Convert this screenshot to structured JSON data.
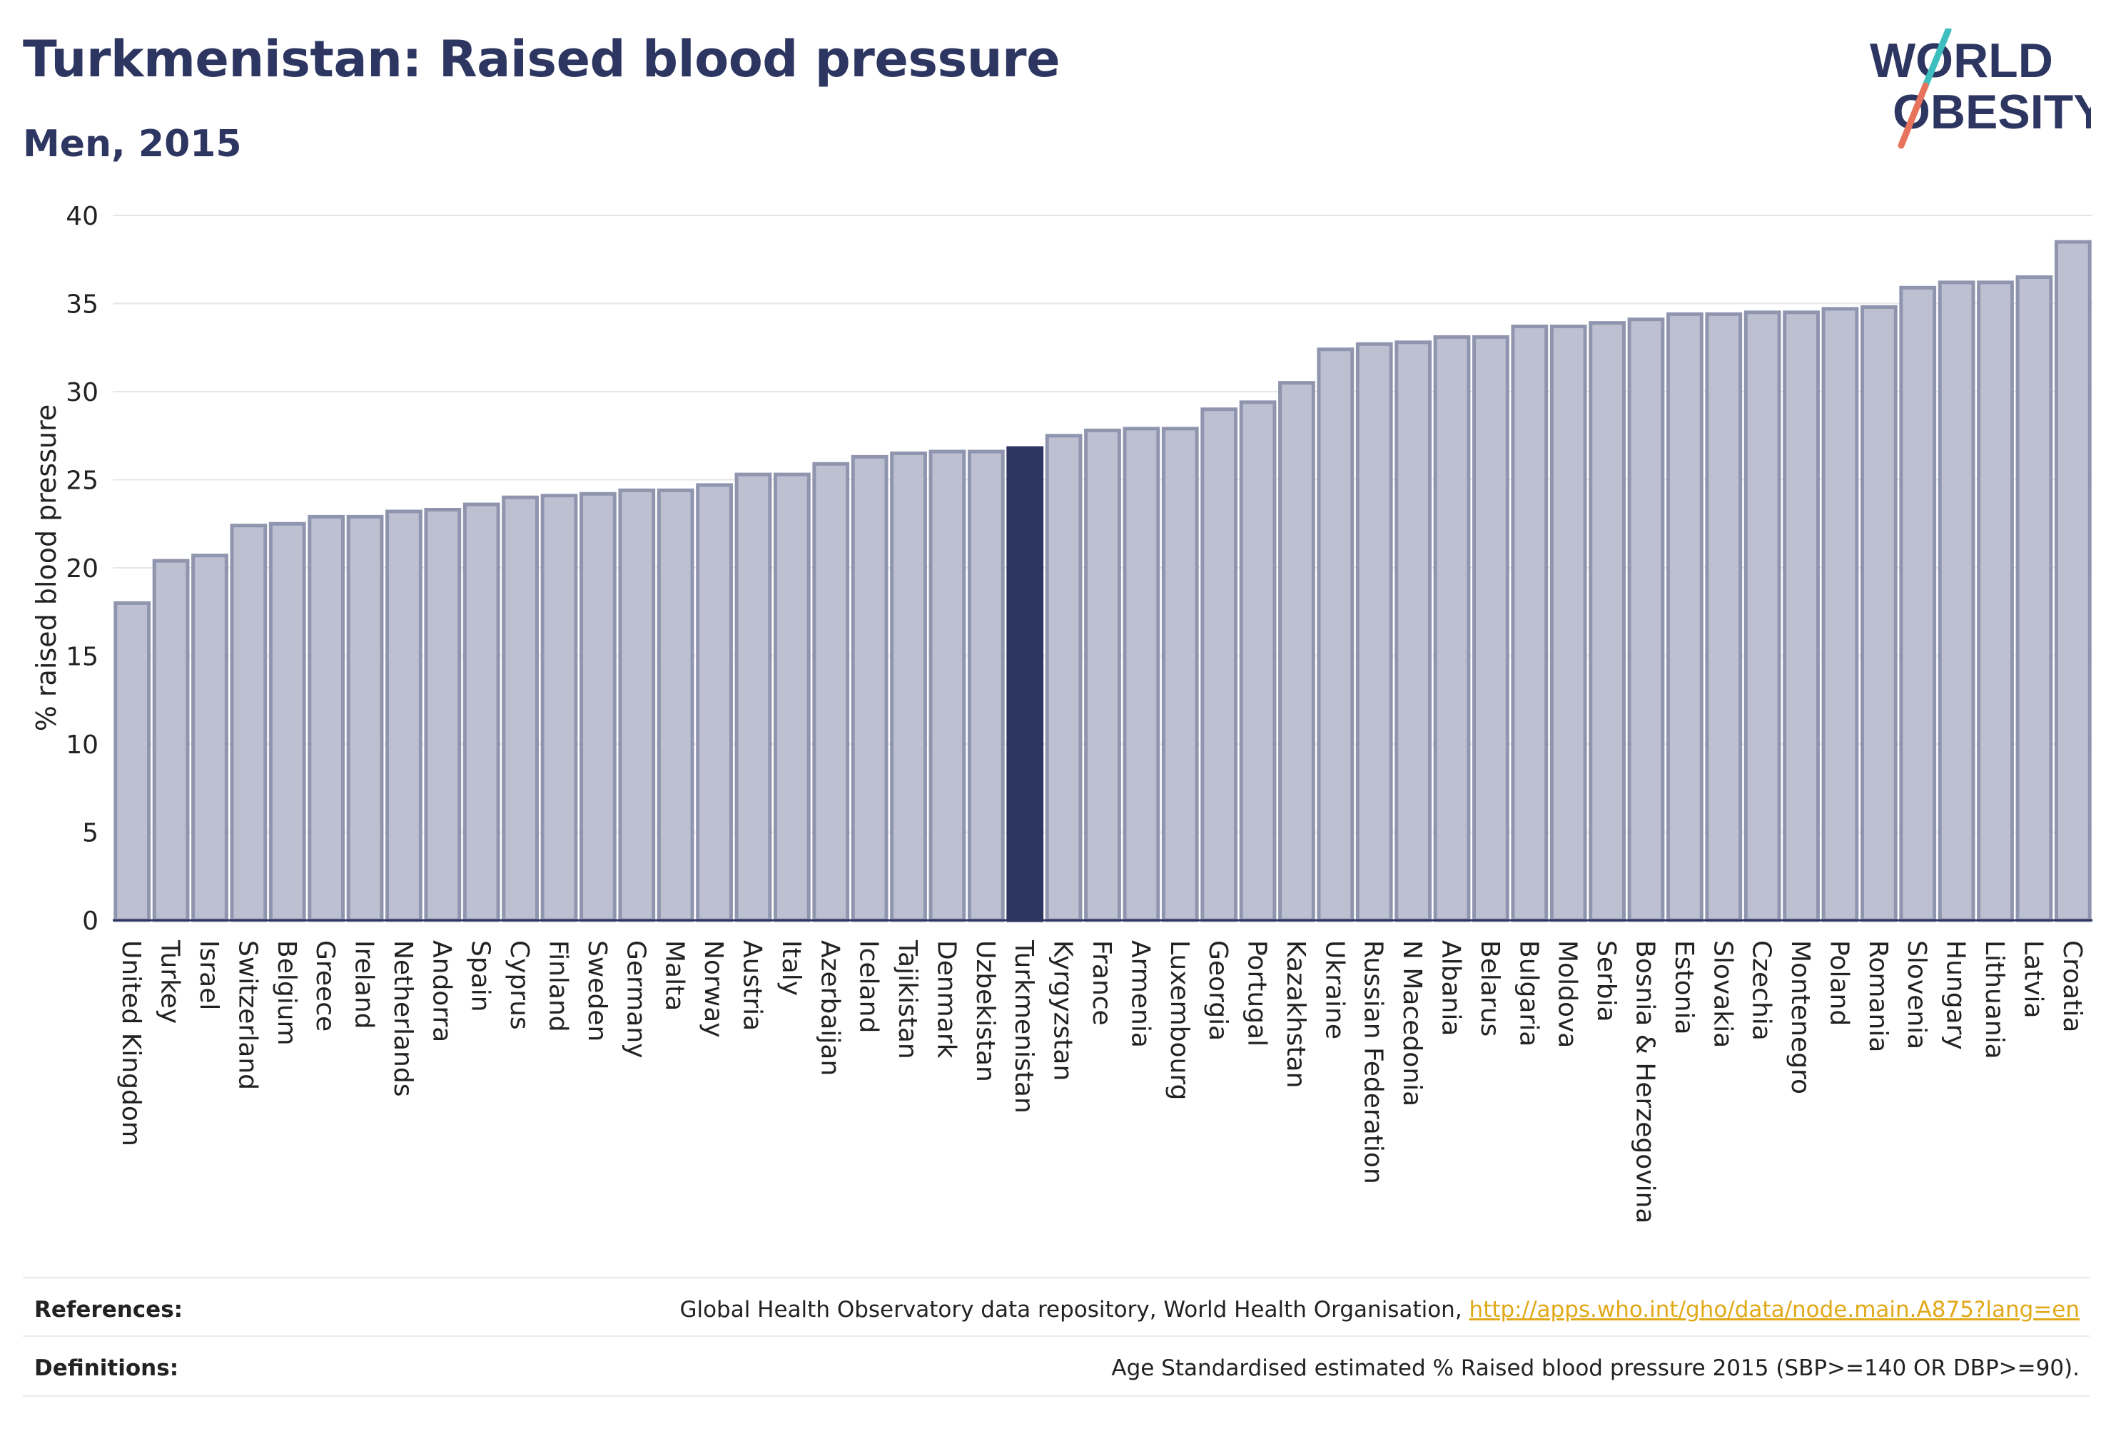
{
  "header": {
    "title": "Turkmenistan: Raised blood pressure",
    "subtitle": "Men, 2015"
  },
  "logo": {
    "line1": "WORLD",
    "line2": "OBESITY"
  },
  "colors": {
    "highlight": "#2d3561",
    "bar_fill": "#bcc0d0",
    "bar_stroke": "#8f95ae",
    "logo_text": "#2d3561",
    "logo_slash_top": "#3dbfbf",
    "logo_slash_bottom": "#e8735c",
    "link": "#e1a918"
  },
  "chart_data": {
    "type": "bar",
    "ylabel": "% raised blood pressure",
    "ylim": [
      0,
      40
    ],
    "yticks": [
      0,
      5,
      10,
      15,
      20,
      25,
      30,
      35,
      40
    ],
    "grid": true,
    "highlight_category": "Turkmenistan",
    "categories": [
      "United Kingdom",
      "Turkey",
      "Israel",
      "Switzerland",
      "Belgium",
      "Greece",
      "Ireland",
      "Netherlands",
      "Andorra",
      "Spain",
      "Cyprus",
      "Finland",
      "Sweden",
      "Germany",
      "Malta",
      "Norway",
      "Austria",
      "Italy",
      "Azerbaijan",
      "Iceland",
      "Tajikistan",
      "Denmark",
      "Uzbekistan",
      "Turkmenistan",
      "Kyrgyzstan",
      "France",
      "Armenia",
      "Luxembourg",
      "Georgia",
      "Portugal",
      "Kazakhstan",
      "Ukraine",
      "Russian Federation",
      "N Macedonia",
      "Albania",
      "Belarus",
      "Bulgaria",
      "Moldova",
      "Serbia",
      "Bosnia & Herzegovina",
      "Estonia",
      "Slovakia",
      "Czechia",
      "Montenegro",
      "Poland",
      "Romania",
      "Slovenia",
      "Hungary",
      "Lithuania",
      "Latvia",
      "Croatia"
    ],
    "values": [
      18.0,
      20.4,
      20.7,
      22.4,
      22.5,
      22.9,
      22.9,
      23.2,
      23.3,
      23.6,
      24.0,
      24.1,
      24.2,
      24.4,
      24.4,
      24.7,
      25.3,
      25.3,
      25.9,
      26.3,
      26.5,
      26.6,
      26.6,
      26.8,
      27.5,
      27.8,
      27.9,
      27.9,
      29.0,
      29.4,
      30.5,
      32.4,
      32.7,
      32.8,
      33.1,
      33.1,
      33.7,
      33.7,
      33.9,
      34.1,
      34.4,
      34.4,
      34.5,
      34.5,
      34.7,
      34.8,
      35.9,
      36.2,
      36.2,
      36.5,
      38.5
    ]
  },
  "footer": {
    "references_label": "References:",
    "references_text": "Global Health Observatory data repository, World Health Organisation, ",
    "references_link": "http://apps.who.int/gho/data/node.main.A875?lang=en",
    "definitions_label": "Definitions:",
    "definitions_text": "Age Standardised estimated % Raised blood pressure 2015 (SBP>=140 OR DBP>=90)."
  }
}
